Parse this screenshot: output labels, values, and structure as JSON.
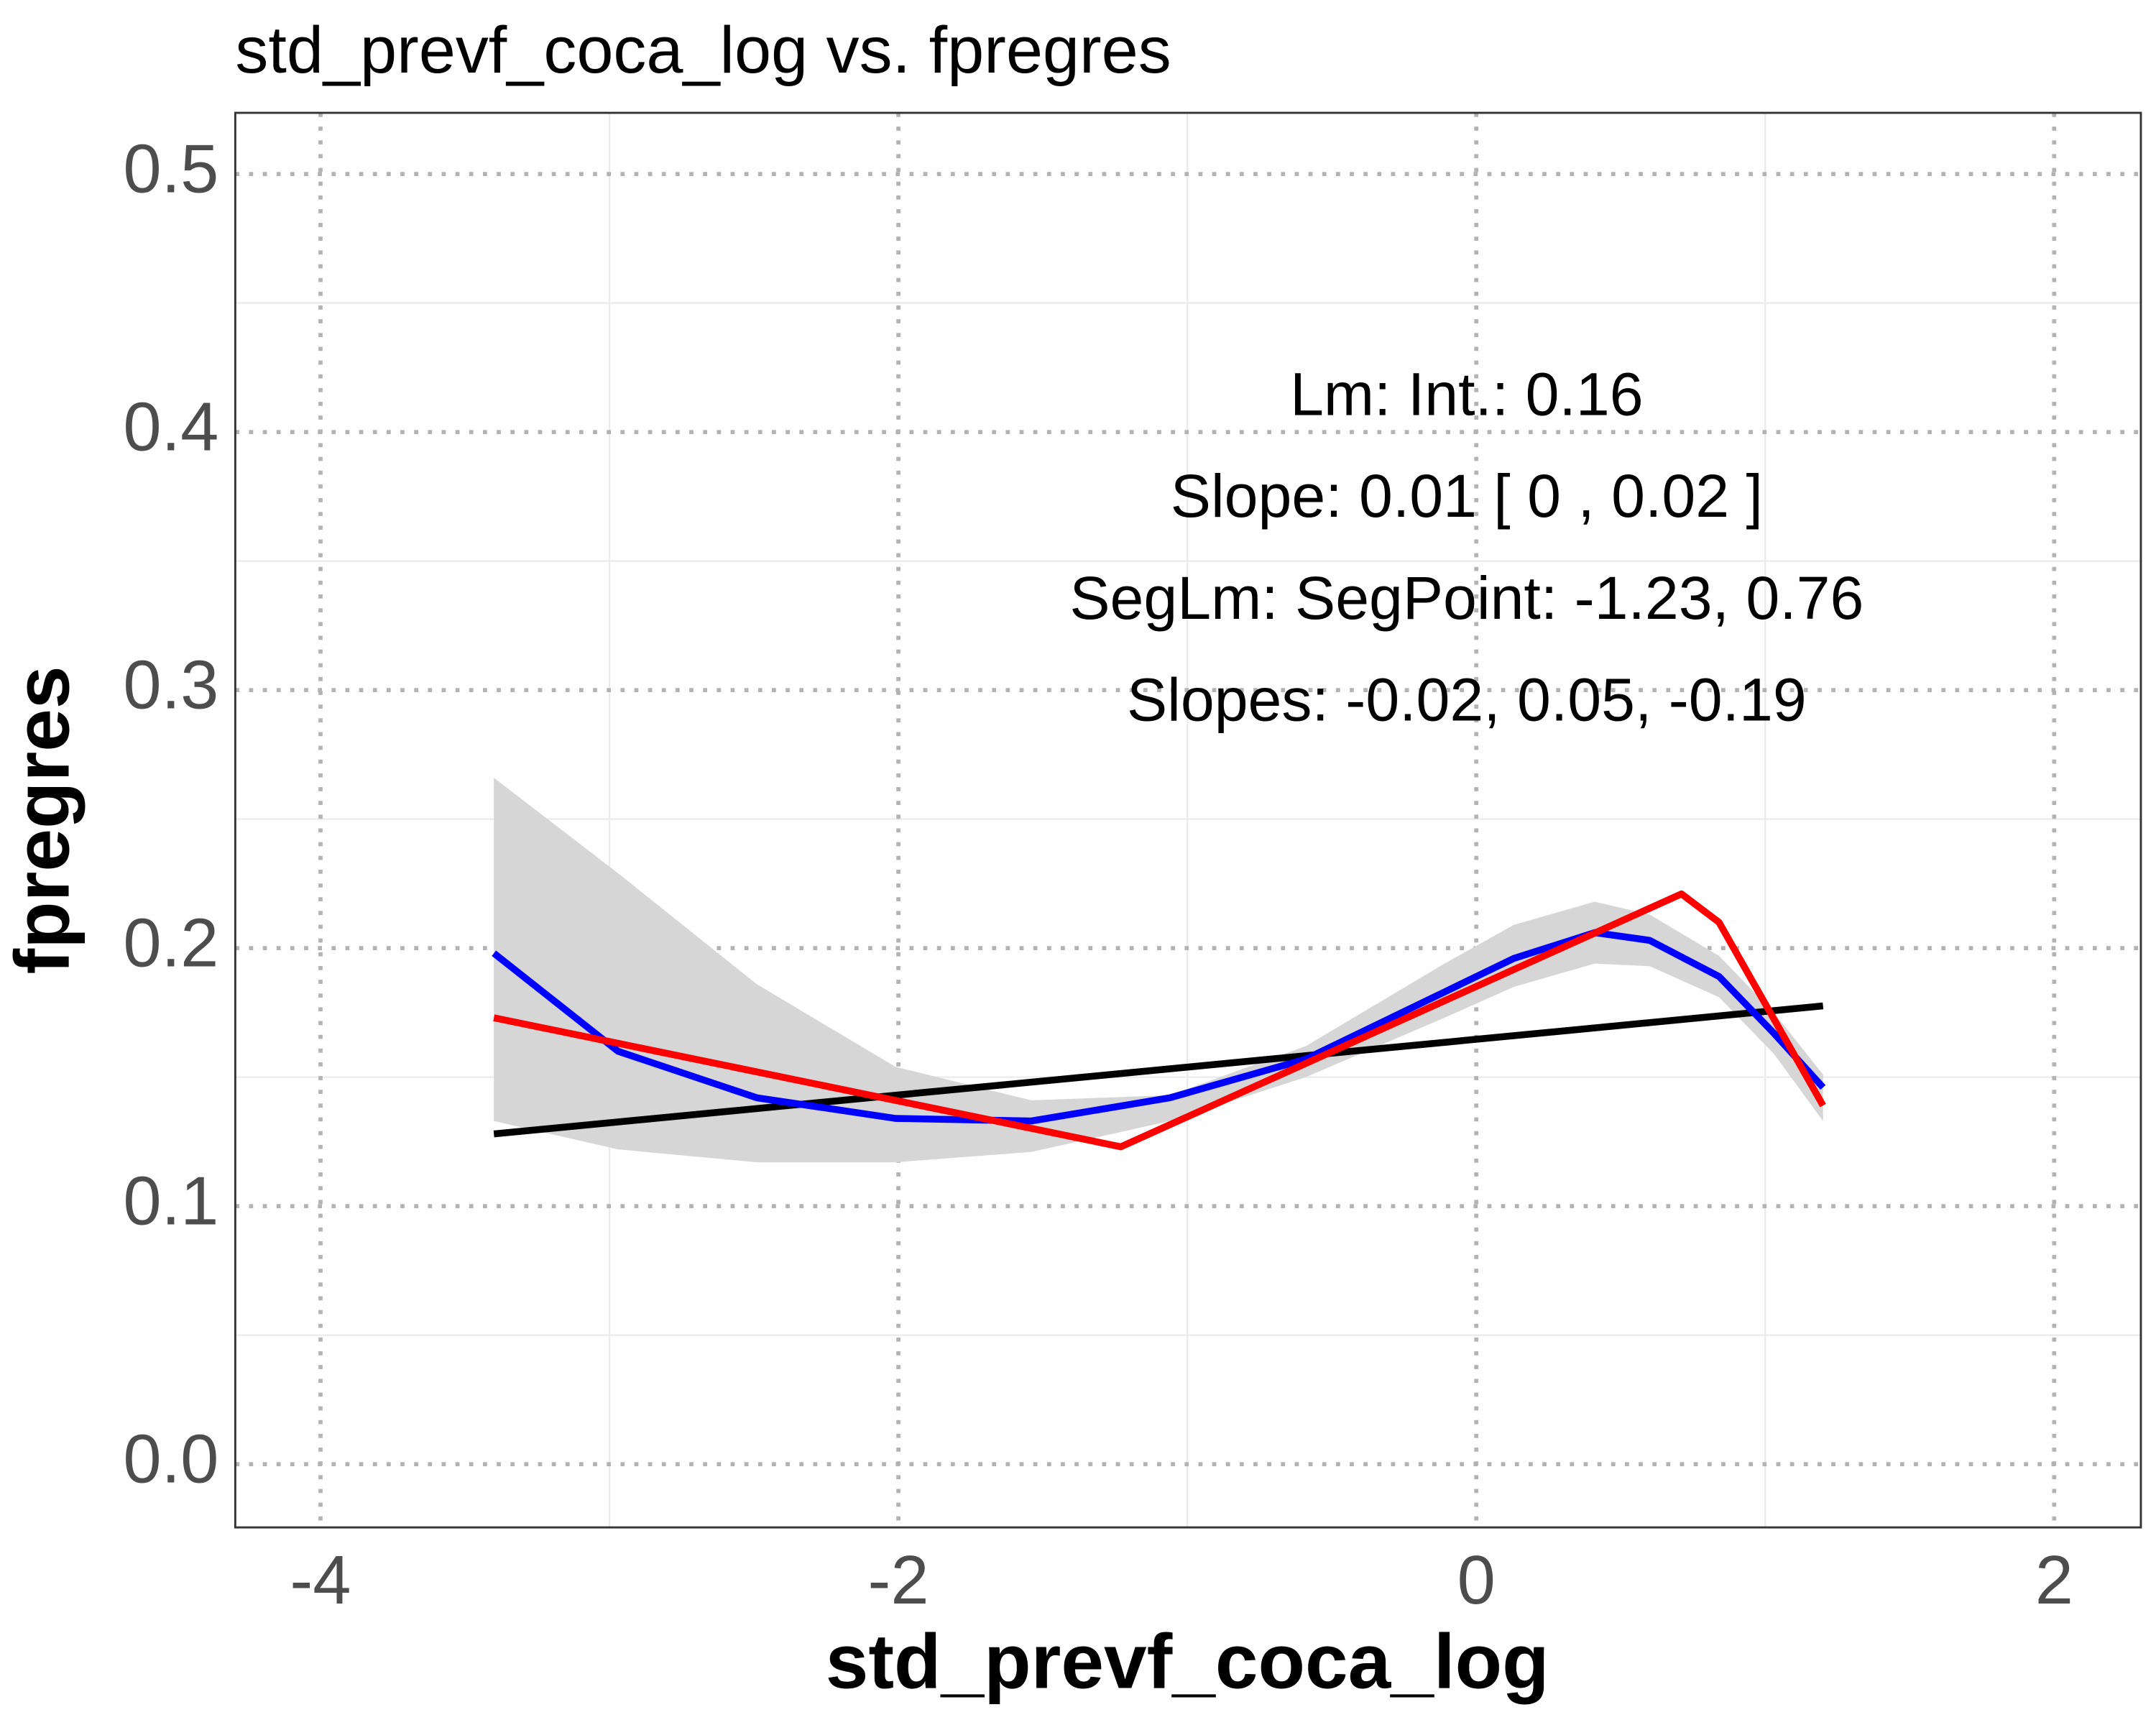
{
  "chart_data": {
    "type": "line",
    "title": "std_prevf_coca_log vs. fpregres",
    "xlabel": "std_prevf_coca_log",
    "ylabel": "fpregres",
    "annotations": [
      "Lm: Int.: 0.16",
      "Slope: 0.01 [ 0 , 0.02 ]",
      "SegLm: SegPoint: -1.23, 0.76",
      "Slopes: -0.02, 0.05, -0.19"
    ],
    "xlim": [
      -4.295,
      2.3
    ],
    "ylim": [
      -0.0245,
      0.5237
    ],
    "xticks": [
      -4,
      -2,
      0,
      2
    ],
    "yticks": [
      {
        "value": 0,
        "label": "0.0"
      },
      0.1,
      0.2,
      0.3,
      0.4,
      0.5
    ],
    "grid": true,
    "smooth": {
      "color": "#0000ff",
      "band_color": "#d6d6d6",
      "x": [
        -3.4,
        -2.97,
        -2.49,
        -2.01,
        -1.54,
        -1.06,
        -0.59,
        -0.11,
        0.13,
        0.41,
        0.6,
        0.84,
        1.03,
        1.2
      ],
      "values": [
        0.198,
        0.16,
        0.142,
        0.134,
        0.133,
        0.142,
        0.157,
        0.183,
        0.196,
        0.206,
        0.203,
        0.189,
        0.167,
        0.146
      ],
      "upper": [
        0.266,
        0.229,
        0.186,
        0.154,
        0.141,
        0.143,
        0.162,
        0.194,
        0.209,
        0.218,
        0.213,
        0.197,
        0.175,
        0.151
      ],
      "lower": [
        0.133,
        0.122,
        0.117,
        0.117,
        0.121,
        0.133,
        0.15,
        0.173,
        0.185,
        0.194,
        0.193,
        0.181,
        0.159,
        0.133
      ]
    },
    "linear": {
      "color": "#000000",
      "x": [
        -3.4,
        1.2
      ],
      "values": [
        0.128,
        0.1776
      ]
    },
    "segmented": {
      "color": "#ff0000",
      "x": [
        -3.4,
        -1.23,
        0.71,
        0.84,
        1.2
      ],
      "values": [
        0.173,
        0.123,
        0.221,
        0.21,
        0.139
      ]
    }
  }
}
